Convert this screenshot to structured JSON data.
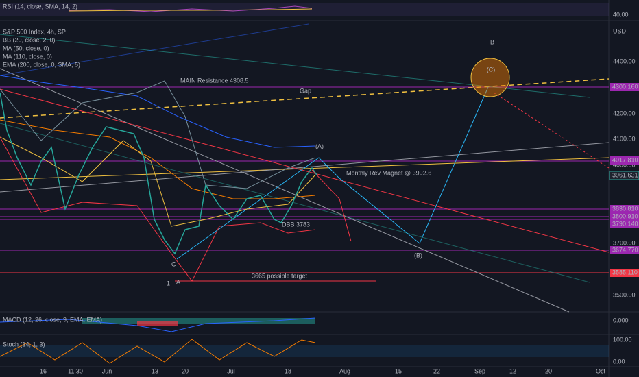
{
  "rsi": {
    "label": "RSI (14, close, SMA, 14, 2)",
    "axis_label": "40.00"
  },
  "legend": [
    "S&P 500 Index, 4h, SP",
    "BB (20, close, 2, 0)",
    "MA (50, close, 0)",
    "MA (110, close, 0)",
    "EMA (200, close, 0, SMA, 5)"
  ],
  "currency": "USD",
  "price_axis": [
    "4400.00",
    "4200.00",
    "4100.00",
    "4000.00",
    "3700.00",
    "3500.00"
  ],
  "price_labels": [
    "4300.160",
    "4017.810",
    "3961.631",
    "3830.810",
    "3800.910",
    "3790.140",
    "3674.770",
    "3585.110"
  ],
  "annotations": [
    "B",
    "(C)",
    "MAIN Resistance 4308.5",
    "Gap",
    "(A)",
    "Monthly Rev Magnet @ 3992.6",
    "DBB 3783",
    "(B)",
    "3665 possible target",
    "C",
    "1",
    "A"
  ],
  "macd": {
    "label": "MACD (12, 26, close, 9, EMA, EMA)",
    "axis_label": "0.000"
  },
  "stoch": {
    "label": "Stoch (14, 1, 3)",
    "axis_labels": [
      "100.00",
      "0.00"
    ]
  },
  "dates": [
    "16",
    "11:30",
    "Jun",
    "13",
    "20",
    "Jul",
    "18",
    "Aug",
    "15",
    "22",
    "Sep",
    "12",
    "20",
    "Oct"
  ]
}
